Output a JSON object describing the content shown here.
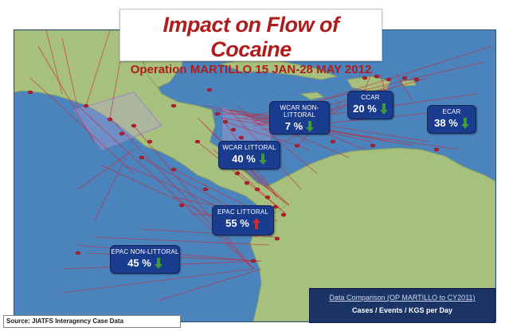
{
  "title": "Impact on Flow of Cocaine",
  "subtitle": "Operation MARTILLO 15 JAN-28 MAY 2012",
  "source": "Source: JIATFS Interagency Case Data",
  "comparison": {
    "line1": "Data Comparison (OP MARTILLO to CY2011)",
    "line2": "Cases / Events / KGS per Day"
  },
  "colors": {
    "ocean": "#4b84bd",
    "land": "#a7c07e",
    "routes": "#c8283a",
    "badge": "#1a3c8e",
    "title": "#b01b1b",
    "arrow_down": "#3e9a3a",
    "arrow_up": "#d42a2a"
  },
  "regions": [
    {
      "label": "WCAR NON-\nLITTORAL",
      "value": "7 %",
      "change": 7,
      "direction": "down",
      "arrow_color": "#3e9a3a"
    },
    {
      "label": "CCAR",
      "value": "20 %",
      "change": 20,
      "direction": "down",
      "arrow_color": "#3e9a3a"
    },
    {
      "label": "ECAR",
      "value": "38 %",
      "change": 38,
      "direction": "down",
      "arrow_color": "#3e9a3a"
    },
    {
      "label": "WCAR LITTORAL",
      "value": "40 %",
      "change": 40,
      "direction": "down",
      "arrow_color": "#3e9a3a"
    },
    {
      "label": "EPAC LITTORAL",
      "value": "55 %",
      "change": 55,
      "direction": "up",
      "arrow_color": "#d42a2a"
    },
    {
      "label": "EPAC NON-LITTORAL",
      "value": "45 %",
      "change": 45,
      "direction": "down",
      "arrow_color": "#3e9a3a"
    }
  ]
}
